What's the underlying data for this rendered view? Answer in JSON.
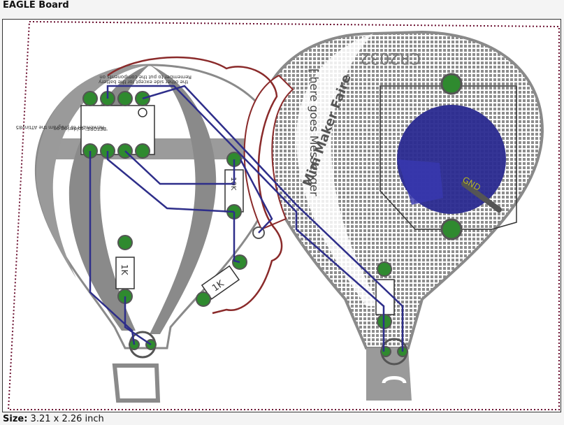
{
  "window": {
    "title": "EAGLE Board"
  },
  "status": {
    "size_label": "Size:",
    "size_value": "3.21 x 2.26 inch"
  },
  "board": {
    "silk_cr2032": "CR2032",
    "silk_mini_maker_faire": "Mini Maker Faire",
    "silk_messenger": "[ here goes Messenger",
    "silk_gnd": "GND",
    "silk_attiny_note_1": "Remember to program the ATtiny85",
    "silk_attiny_note_2": "'BEFORE' soldering on",
    "silk_top_note_1": "Remember to put the components on",
    "silk_top_note_2": "the other side except for the battery",
    "silk_r_10k": "10K",
    "silk_r_1k": "1K",
    "silk_r_1kr": "1K"
  },
  "colors": {
    "pour": "#8a8a8a",
    "pad": "#2f8a2f",
    "trace": "#2e2e8a",
    "outline": "#8a2a2a",
    "battery": "#2a2a90"
  }
}
